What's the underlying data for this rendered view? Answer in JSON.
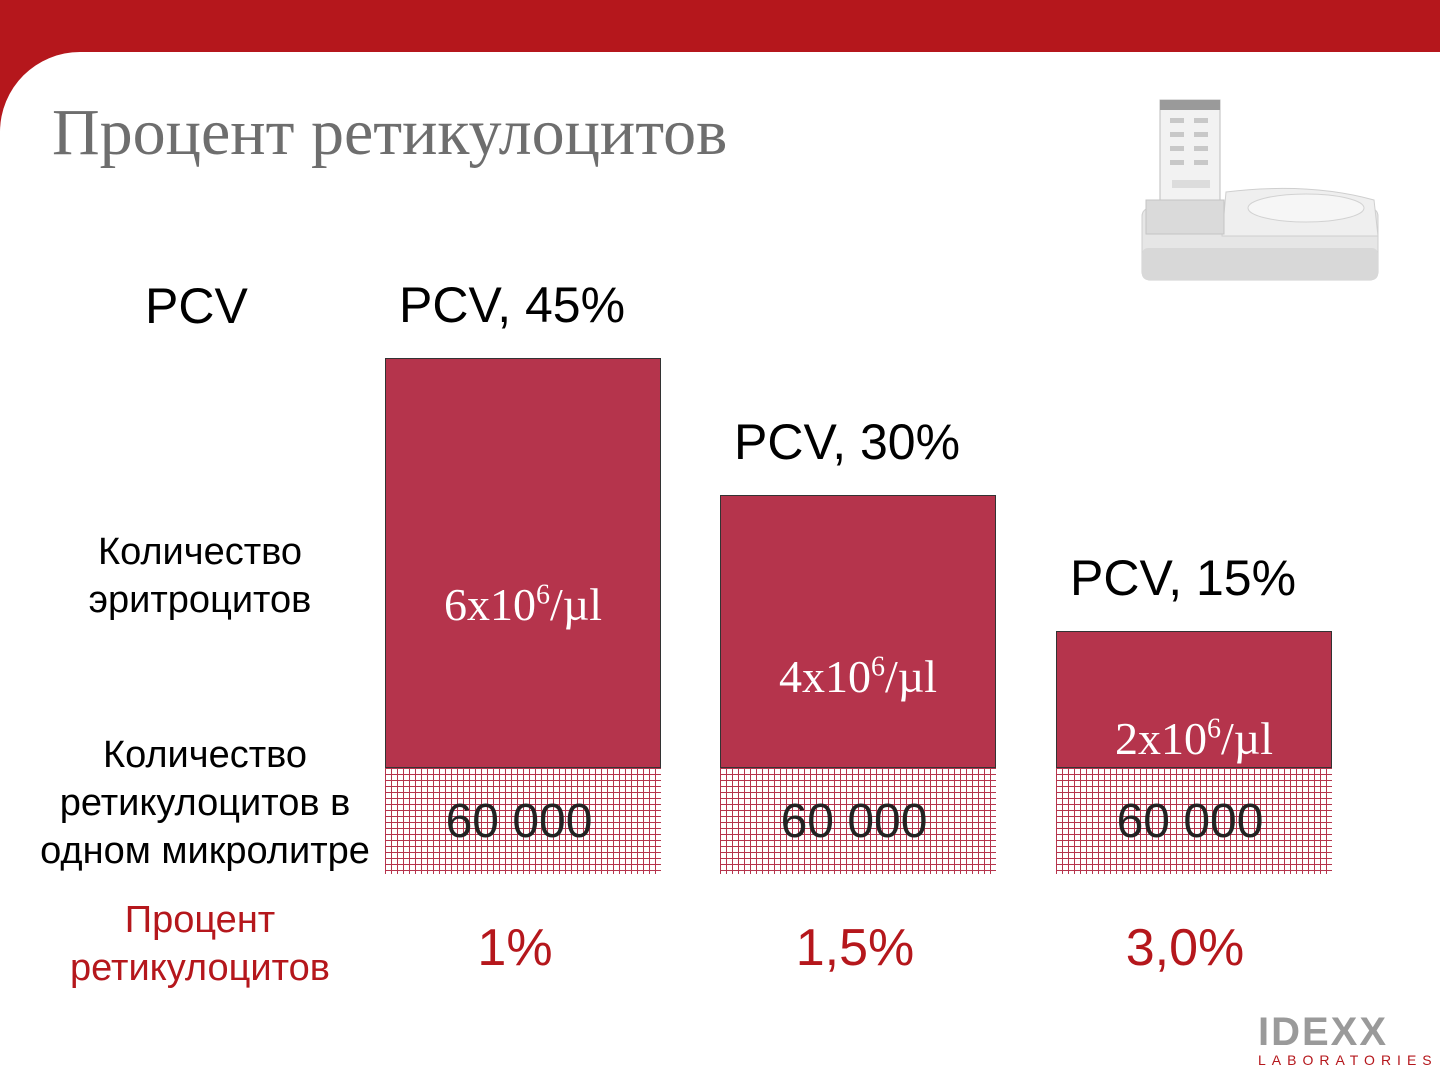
{
  "slide": {
    "title": "Процент ретикулоцитов",
    "accent_color": "#b5171c",
    "bar_color": "#b5344c"
  },
  "row_labels": {
    "pcv": "PCV",
    "rbc_line1": "Количество",
    "rbc_line2": "эритроцитов",
    "retic_line1": "Количество",
    "retic_line2": "ретикулоцитов в",
    "retic_line3": "одном микролитре",
    "pct_line1": "Процент",
    "pct_line2": "ретикулоцитов"
  },
  "chart_data": {
    "type": "bar",
    "categories": [
      "PCV, 45%",
      "PCV, 30%",
      "PCV, 15%"
    ],
    "pcv_percent": [
      45,
      30,
      15
    ],
    "rbc_count": [
      {
        "base": "6x10",
        "exp": "6",
        "unit": "/µl"
      },
      {
        "base": "4x10",
        "exp": "6",
        "unit": "/µl"
      },
      {
        "base": "2x10",
        "exp": "6",
        "unit": "/µl"
      }
    ],
    "reticulocyte_count": [
      "60 000",
      "60 000",
      "60 000"
    ],
    "reticulocyte_percent": [
      "1%",
      "1,5%",
      "3,0%"
    ]
  },
  "logo": {
    "name": "IDEXX",
    "subtitle": "LABORATORIES"
  },
  "icons": {
    "device": "analyzer-device-icon"
  }
}
